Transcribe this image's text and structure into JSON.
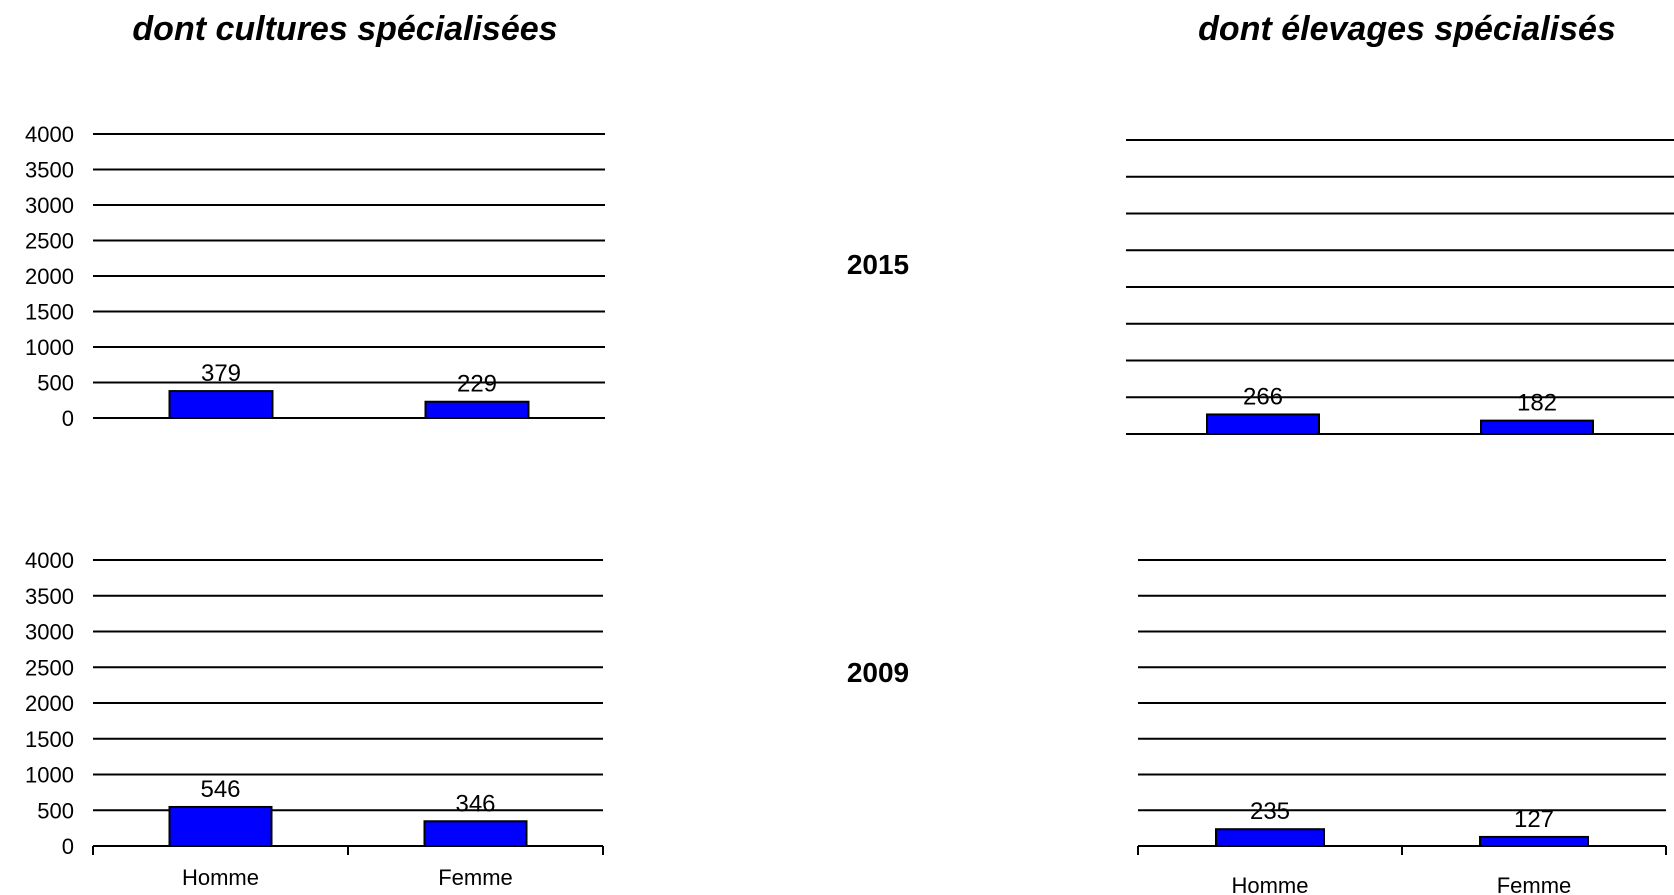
{
  "titles": {
    "left": "dont cultures spécialisées",
    "right": "dont élevages spécialisés"
  },
  "years": [
    "2015",
    "2009"
  ],
  "colors": {
    "bar": "#0000ff",
    "bar_border": "#000000",
    "grid": "#000000"
  },
  "chart_data": [
    {
      "type": "bar",
      "title": "",
      "categories": [
        "Homme",
        "Femme"
      ],
      "values": [
        379,
        229
      ],
      "ylim": [
        0,
        4000
      ],
      "yticks": [
        "0",
        "500",
        "1000",
        "1500",
        "2000",
        "2500",
        "3000",
        "3500",
        "4000"
      ],
      "show_yticks": true,
      "show_categories": false,
      "grid": true
    },
    {
      "type": "bar",
      "title": "",
      "categories": [
        "Homme",
        "Femme"
      ],
      "values": [
        266,
        182
      ],
      "ylim": [
        0,
        4000
      ],
      "yticks": [],
      "show_yticks": false,
      "show_categories": false,
      "grid": true
    },
    {
      "type": "bar",
      "title": "",
      "categories": [
        "Homme",
        "Femme"
      ],
      "values": [
        546,
        346
      ],
      "ylim": [
        0,
        4000
      ],
      "yticks": [
        "0",
        "500",
        "1000",
        "1500",
        "2000",
        "2500",
        "3000",
        "3500",
        "4000"
      ],
      "show_yticks": true,
      "show_categories": true,
      "grid": true
    },
    {
      "type": "bar",
      "title": "",
      "categories": [
        "Homme",
        "Femme"
      ],
      "values": [
        235,
        127
      ],
      "ylim": [
        0,
        4000
      ],
      "yticks": [],
      "show_yticks": false,
      "show_categories": true,
      "grid": true
    }
  ]
}
